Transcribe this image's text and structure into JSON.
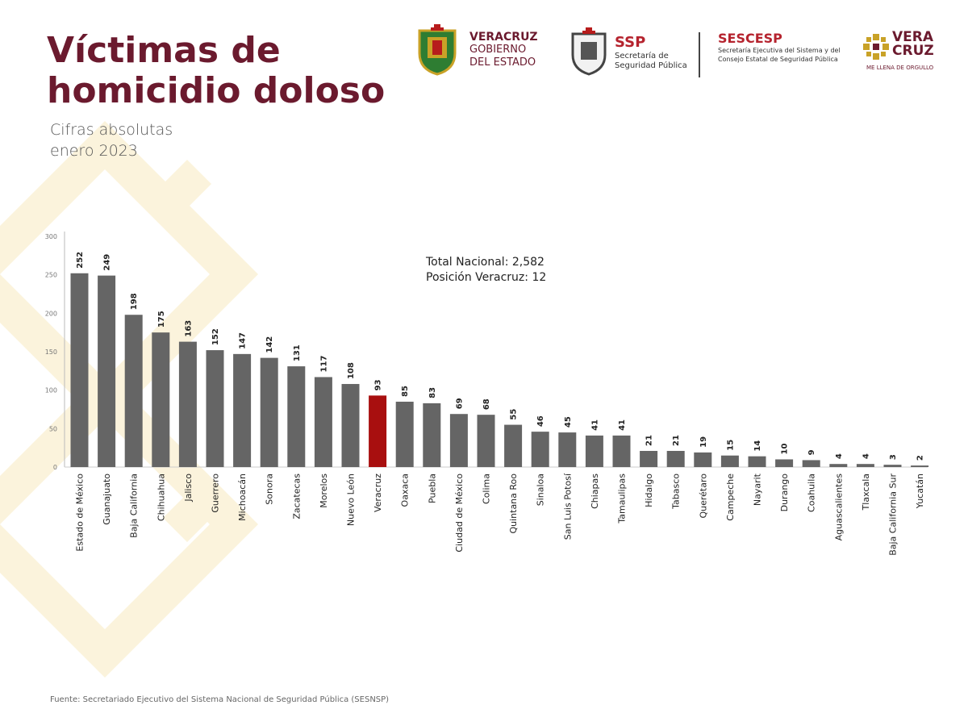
{
  "page": {
    "title": "Víctimas de homicidio doloso",
    "subtitle_line1": "Cifras absolutas",
    "subtitle_line2": "enero 2023",
    "footer": "Fuente: Secretariado Ejecutivo del Sistema Nacional de Seguridad Pública (SESNSP)"
  },
  "logos": {
    "veracruz_gov": {
      "line1": "VERACRUZ",
      "line2": "GOBIERNO",
      "line3": "DEL ESTADO"
    },
    "ssp": {
      "name": "SSP",
      "line1": "Secretaría de",
      "line2": "Seguridad Pública"
    },
    "sescesp": {
      "name": "SESCESP",
      "line1": "Secretaría Ejecutiva del Sistema y del",
      "line2": "Consejo Estatal de Seguridad Pública"
    },
    "brand": {
      "line1": "VERA",
      "line2": "CRUZ",
      "tagline": "ME LLENA DE ORGULLO"
    }
  },
  "colors": {
    "title": "#6b1a2e",
    "bar": "#656565",
    "highlight": "#a80f0f",
    "pattern": "#fbf3dc",
    "brand_gold": "#c9a227"
  },
  "chart_data": {
    "type": "bar",
    "title": "",
    "xlabel": "",
    "ylabel": "",
    "ylim": [
      0,
      300
    ],
    "yticks": [
      0,
      50,
      100,
      150,
      200,
      250,
      300
    ],
    "grid": false,
    "highlight": "Veracruz",
    "annotation_line1": "Total Nacional: 2,582",
    "annotation_line2": "Posición Veracruz: 12",
    "categories": [
      "Estado de México",
      "Guanajuato",
      "Baja California",
      "Chihuahua",
      "Jalisco",
      "Guerrero",
      "Michoacán",
      "Sonora",
      "Zacatecas",
      "Morelos",
      "Nuevo León",
      "Veracruz",
      "Oaxaca",
      "Puebla",
      "Ciudad de México",
      "Colima",
      "Quintana Roo",
      "Sinaloa",
      "San Luis Potosí",
      "Chiapas",
      "Tamaulipas",
      "Hidalgo",
      "Tabasco",
      "Querétaro",
      "Campeche",
      "Nayarit",
      "Durango",
      "Coahuila",
      "Aguascalientes",
      "Tlaxcala",
      "Baja California Sur",
      "Yucatán"
    ],
    "values": [
      252,
      249,
      198,
      175,
      163,
      152,
      147,
      142,
      131,
      117,
      108,
      93,
      85,
      83,
      69,
      68,
      55,
      46,
      45,
      41,
      41,
      21,
      21,
      19,
      15,
      14,
      10,
      9,
      4,
      4,
      3,
      2
    ]
  }
}
